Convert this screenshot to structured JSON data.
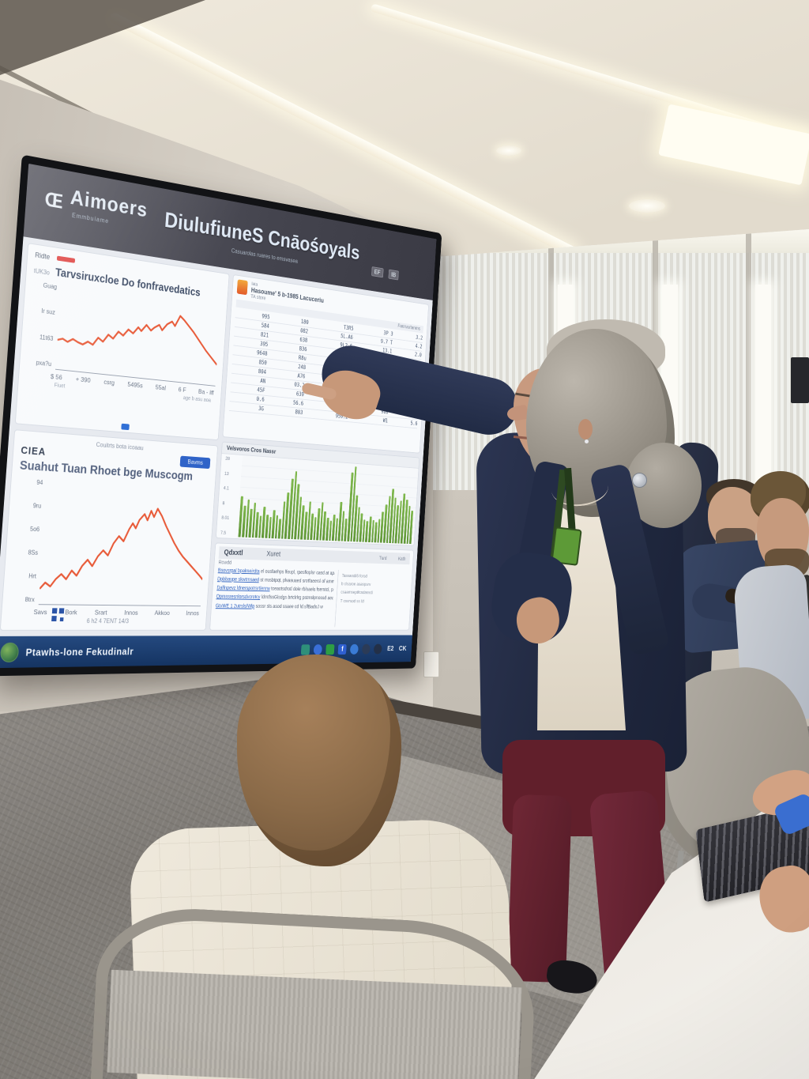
{
  "colors": {
    "accent_line": "#e85a38",
    "bar_green": "#6a9e3f",
    "taskbar_blue": "#1c3f77",
    "link_blue": "#2f62c0"
  },
  "screen": {
    "header": {
      "logo_glyph": "Œ",
      "logo": "Aimoers",
      "logo_sub": "Emmbuíame",
      "title": "DiulufiuneS Cnāośoyals",
      "subtitle": "Casuarolas ruares to emsvasea",
      "badges": [
        "EF",
        "IB"
      ]
    },
    "chart1": {
      "tag": "Ridte",
      "corner": "tUK3o",
      "title": "Tarvsiruxcloe Do fonfravedatics",
      "y_ticks": [
        "Guag",
        "Ir suz",
        "11t63",
        "pxa?u"
      ],
      "x_ticks": [
        "$ 56",
        "+ 390",
        "csrg",
        "5495s",
        "55al",
        "6 F",
        "Ba - Iff"
      ],
      "footnote": "Fiuet",
      "footnote2": "age b asu aoa",
      "points": [
        [
          0,
          66
        ],
        [
          3,
          64
        ],
        [
          6,
          67
        ],
        [
          9,
          63
        ],
        [
          12,
          66
        ],
        [
          15,
          68
        ],
        [
          18,
          64
        ],
        [
          21,
          67
        ],
        [
          24,
          58
        ],
        [
          27,
          62
        ],
        [
          30,
          53
        ],
        [
          33,
          57
        ],
        [
          36,
          48
        ],
        [
          39,
          52
        ],
        [
          42,
          44
        ],
        [
          45,
          48
        ],
        [
          48,
          40
        ],
        [
          50,
          44
        ],
        [
          53,
          36
        ],
        [
          56,
          42
        ],
        [
          58,
          38
        ],
        [
          61,
          34
        ],
        [
          63,
          40
        ],
        [
          66,
          32
        ],
        [
          69,
          28
        ],
        [
          71,
          33
        ],
        [
          74,
          20
        ],
        [
          77,
          25
        ],
        [
          80,
          31
        ],
        [
          83,
          37
        ],
        [
          86,
          44
        ],
        [
          89,
          51
        ],
        [
          92,
          58
        ],
        [
          95,
          64
        ],
        [
          98,
          70
        ],
        [
          100,
          74
        ]
      ]
    },
    "chart2": {
      "corner": "CIEA",
      "header": "Couitrts bota icoaau",
      "title": "Suahut Tuan Rhoet bge Muscogm",
      "button": "Bavms",
      "y_ticks": [
        "94",
        "9ru",
        "5o6",
        "8Ss",
        "Hrt",
        "8trx"
      ],
      "x_ticks": [
        "Savs",
        "Bork",
        "Srart",
        "Innos",
        "Akkoo",
        "Innos"
      ],
      "caption": "6 h2 4 7ENT 14/3",
      "points": [
        [
          0,
          88
        ],
        [
          3,
          83
        ],
        [
          6,
          86
        ],
        [
          9,
          80
        ],
        [
          12,
          76
        ],
        [
          15,
          80
        ],
        [
          18,
          73
        ],
        [
          21,
          77
        ],
        [
          24,
          69
        ],
        [
          27,
          64
        ],
        [
          30,
          69
        ],
        [
          33,
          61
        ],
        [
          36,
          56
        ],
        [
          39,
          60
        ],
        [
          42,
          50
        ],
        [
          45,
          44
        ],
        [
          48,
          48
        ],
        [
          51,
          38
        ],
        [
          53,
          33
        ],
        [
          55,
          37
        ],
        [
          57,
          30
        ],
        [
          60,
          25
        ],
        [
          62,
          30
        ],
        [
          64,
          22
        ],
        [
          66,
          27
        ],
        [
          68,
          20
        ],
        [
          71,
          26
        ],
        [
          74,
          34
        ],
        [
          77,
          41
        ],
        [
          80,
          48
        ],
        [
          83,
          54
        ],
        [
          86,
          59
        ],
        [
          89,
          63
        ],
        [
          92,
          67
        ],
        [
          95,
          71
        ],
        [
          98,
          75
        ],
        [
          100,
          78
        ]
      ]
    },
    "table": {
      "app": "lata",
      "title": "Hasoume' 5 b-1985 Lacuceriu",
      "subtitle": "TA store",
      "col_header": "Fanruurtanms",
      "rows": [
        [
          "995",
          "180",
          "T3R5",
          "3P 3",
          "3.2"
        ],
        [
          "584",
          "082",
          "5L.A6",
          "9.7 T",
          "4.2"
        ],
        [
          "821",
          "638",
          "9L2.6",
          "13.1",
          "2.0"
        ],
        [
          "395",
          "B36",
          "38%",
          "91.1",
          "8.9"
        ],
        [
          "9648",
          "R8u",
          "9R6",
          "51.3",
          "8.3"
        ],
        [
          "850",
          "248",
          "1dt",
          "8t",
          "6.1"
        ],
        [
          "804",
          "A76",
          "9.L",
          "50.7",
          "4.4"
        ],
        [
          "AN",
          "03.2",
          "6.2",
          "9B.L",
          "2.8"
        ],
        [
          "45F",
          "639",
          "97.8",
          "50.7",
          "1.9"
        ],
        [
          "0.6",
          "56.6",
          "99.0",
          "9u0",
          "1.8"
        ],
        [
          "3G",
          "803",
          "959.2",
          "W1",
          "5.6"
        ]
      ]
    },
    "green": {
      "title": "Velsvoros Cros Nassr",
      "left_vals": [
        "28",
        "13",
        "4.1",
        "8",
        "8.01",
        "7.5"
      ],
      "bars": [
        0.52,
        0.4,
        0.48,
        0.36,
        0.44,
        0.33,
        0.28,
        0.4,
        0.3,
        0.27,
        0.36,
        0.3,
        0.25,
        0.48,
        0.6,
        0.78,
        0.88,
        0.72,
        0.55,
        0.44,
        0.36,
        0.5,
        0.34,
        0.3,
        0.42,
        0.5,
        0.38,
        0.3,
        0.26,
        0.34,
        0.3,
        0.52,
        0.4,
        0.3,
        0.92,
        1.0,
        0.62,
        0.46,
        0.38,
        0.3,
        0.28,
        0.34,
        0.3,
        0.27,
        0.32,
        0.42,
        0.52,
        0.64,
        0.74,
        0.62,
        0.52,
        0.58,
        0.68,
        0.6,
        0.52,
        0.45
      ]
    },
    "links": {
      "label": "Rcwdd",
      "tab1": "Qdxxtl",
      "tab2": "Xuret",
      "right_tabs": [
        "Turd",
        "Kath"
      ],
      "items": [
        {
          "link": "Bsovsrpal bpalmeirdta",
          "rest": " el ousfaehps lfoupl, rpesfioplsr casd at apaemssrog, vssllg"
        },
        {
          "link": "Dpbbaupe skwtmsaed",
          "rest": " st rrusbtpqt, plvasuaed srotfaeersl of ammssvtrg, raafy"
        },
        {
          "link": "Dalfnpevz ldnerspotrsrtlenrw",
          "rest": " tceaotsdrotl dole rblsaels fsemtcl, pssmnfaersfo"
        },
        {
          "link": "Qpmssresnlorsdvcrotcy",
          "rest": " ldmtlssGlsdgs brtclrlrg pstmslpnossd aeatdfl"
        },
        {
          "link": "GtvWE 1 2utrsls/Wlp",
          "rest": " sossr sls asod ssaee cd ld.sllBadoJ w"
        }
      ],
      "side_notes": [
        "Tassaodll6 forsd",
        "b clsaroe asaspsrv",
        "csaemseptfcadassdl",
        "T csvrsod ss fd"
      ]
    },
    "taskbar": {
      "label": "Ptawhs-lone Fekudinalr",
      "right_glyphs": [
        "E2",
        "CK"
      ],
      "icons": [
        {
          "color": "#2e8f7a",
          "round": false,
          "glyph": ""
        },
        {
          "color": "#3a6fd8",
          "round": true,
          "glyph": ""
        },
        {
          "color": "#2e9e44",
          "round": false,
          "glyph": ""
        },
        {
          "color": "#2f5fd0",
          "round": false,
          "glyph": "f"
        },
        {
          "color": "#3a7bd5",
          "round": true,
          "glyph": ""
        },
        {
          "color": "#2b3b57",
          "round": true,
          "glyph": ""
        },
        {
          "color": "#233048",
          "round": true,
          "glyph": ""
        }
      ]
    }
  }
}
